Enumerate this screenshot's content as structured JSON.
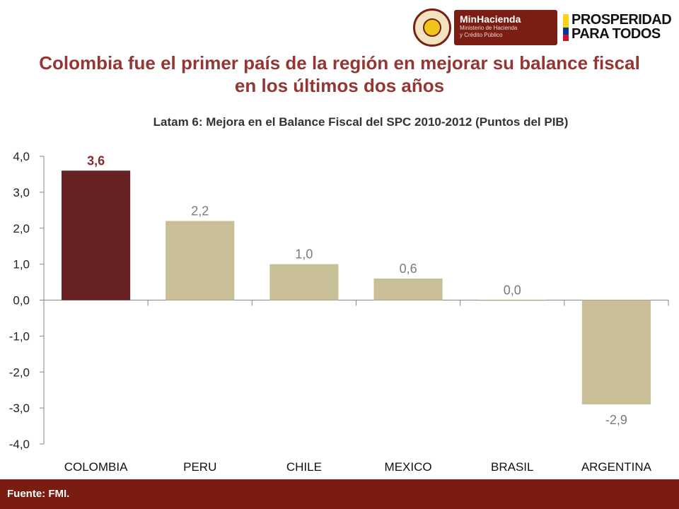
{
  "logos": {
    "minhacienda_title": "MinHacienda",
    "minhacienda_subtitle": "Ministerio de Hacienda\ny Crédito Público",
    "prosperidad_text": "PROSPERIDAD\nPARA TODOS",
    "flag_colors": [
      "#FCD116",
      "#003893",
      "#CE1126"
    ]
  },
  "headline": "Colombia fue el primer país de la región en mejorar su balance fiscal en los últimos dos años",
  "chart_data": {
    "type": "bar",
    "title": "Latam 6: Mejora en el Balance Fiscal del SPC 2010-2012  (Puntos del PIB)",
    "xlabel": "",
    "ylabel": "",
    "categories": [
      "COLOMBIA",
      "PERU",
      "CHILE",
      "MEXICO",
      "BRASIL",
      "ARGENTINA"
    ],
    "values": [
      3.6,
      2.2,
      1.0,
      0.6,
      0.0,
      -2.9
    ],
    "data_labels": [
      "3,6",
      "2,2",
      "1,0",
      "0,6",
      "0,0",
      "-2,9"
    ],
    "ylim": [
      -4,
      4
    ],
    "y_ticks": [
      "-4,0",
      "-3,0",
      "-2,0",
      "-1,0",
      "0,0",
      "1,0",
      "2,0",
      "3,0",
      "4,0"
    ],
    "grid": false,
    "legend": "none",
    "colors": {
      "highlight": "#662222",
      "bars": "#C9BF97",
      "highlight_label": "#8B2A2A",
      "label": "#7A7A7A"
    }
  },
  "footer": {
    "source": "Fuente: FMI.",
    "bg_color": "#7b1c10"
  }
}
